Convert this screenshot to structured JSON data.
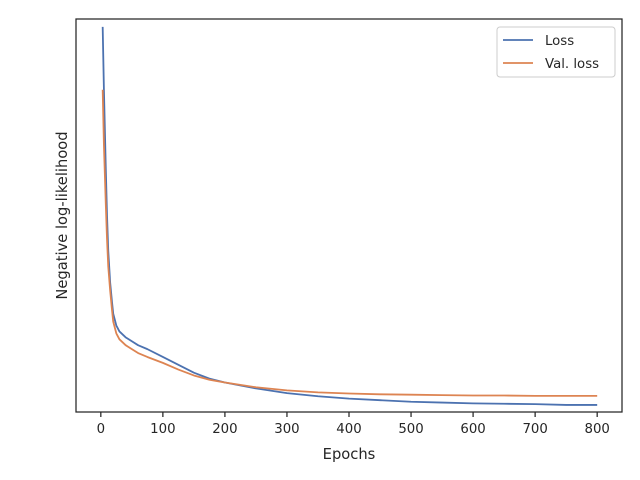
{
  "chart_data": {
    "type": "line",
    "xlabel": "Epochs",
    "ylabel": "Negative log-likelihood",
    "xlim": [
      -40,
      840
    ],
    "ylim": [
      0,
      1
    ],
    "xticks": [
      0,
      100,
      200,
      300,
      400,
      500,
      600,
      700,
      800
    ],
    "x_tick_labels": [
      "0",
      "100",
      "200",
      "300",
      "400",
      "500",
      "600",
      "700",
      "800"
    ],
    "y_tick_labels_shown": false,
    "grid": false,
    "legend_position": "top-right",
    "x": [
      3,
      5,
      8,
      10,
      12,
      15,
      18,
      20,
      25,
      30,
      40,
      50,
      60,
      75,
      100,
      125,
      150,
      175,
      200,
      250,
      300,
      350,
      400,
      450,
      500,
      550,
      600,
      650,
      700,
      750,
      800
    ],
    "series": [
      {
        "name": "Loss",
        "color": "#4c72b0",
        "values": [
          0.98,
          0.82,
          0.62,
          0.5,
          0.41,
          0.33,
          0.28,
          0.25,
          0.22,
          0.205,
          0.19,
          0.18,
          0.17,
          0.16,
          0.14,
          0.12,
          0.1,
          0.085,
          0.075,
          0.06,
          0.048,
          0.04,
          0.034,
          0.03,
          0.026,
          0.024,
          0.022,
          0.021,
          0.02,
          0.018,
          0.018
        ]
      },
      {
        "name": "Val. loss",
        "color": "#dd8452",
        "values": [
          0.82,
          0.68,
          0.53,
          0.44,
          0.37,
          0.31,
          0.26,
          0.23,
          0.2,
          0.185,
          0.17,
          0.16,
          0.15,
          0.14,
          0.125,
          0.108,
          0.093,
          0.082,
          0.075,
          0.063,
          0.055,
          0.05,
          0.047,
          0.045,
          0.044,
          0.043,
          0.042,
          0.042,
          0.041,
          0.041,
          0.041
        ]
      }
    ]
  }
}
